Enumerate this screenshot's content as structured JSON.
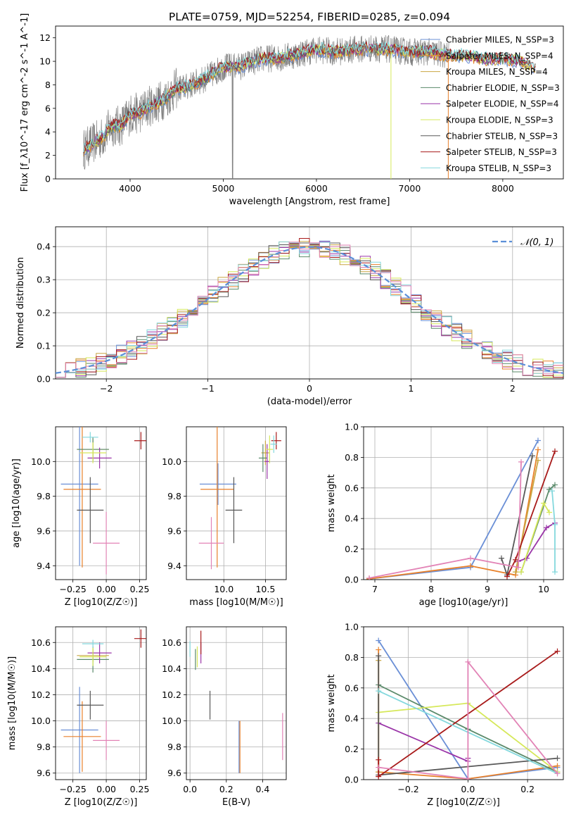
{
  "title": "PLATE=0759, MJD=52254, FIBERID=0285, z=0.094",
  "colors": {
    "chabrier_miles": "#6a8fd6",
    "salpeter_miles": "#e8812b",
    "kroupa_miles": "#c9a642",
    "chabrier_elodie": "#5a8a6a",
    "salpeter_elodie": "#9a35a8",
    "kroupa_elodie": "#d6e85a",
    "chabrier_stelib": "#585858",
    "salpeter_stelib": "#a81a1a",
    "kroupa_stelib": "#84d8dd",
    "pink": "#e283b6",
    "spectrum": "#808080",
    "normal": "#5b8fd8",
    "grid": "#b0b0b0"
  },
  "chart_data": [
    {
      "id": "spectrum",
      "type": "line",
      "xlabel": "wavelength [Angstrom, rest frame]",
      "ylabel": "Flux [f_λ10^-17 erg cm^-2 s^-1 A^-1]",
      "xlim": [
        3200,
        8650
      ],
      "ylim": [
        0,
        13
      ],
      "xticks": [
        4000,
        5000,
        6000,
        7000,
        8000
      ],
      "yticks": [
        0,
        2,
        4,
        6,
        8,
        10,
        12
      ],
      "grid": false,
      "legend_position": "right",
      "legend": [
        {
          "label": "Chabrier MILES, N_SSP=3",
          "color": "#6a8fd6"
        },
        {
          "label": "Salpeter MILES, N_SSP=4",
          "color": "#e8812b"
        },
        {
          "label": "Kroupa MILES, N_SSP=4",
          "color": "#c9a642"
        },
        {
          "label": "Chabrier ELODIE, N_SSP=3",
          "color": "#5a8a6a"
        },
        {
          "label": "Salpeter ELODIE, N_SSP=4",
          "color": "#9a35a8"
        },
        {
          "label": "Kroupa ELODIE, N_SSP=3",
          "color": "#d6e85a"
        },
        {
          "label": "Chabrier STELIB, N_SSP=3",
          "color": "#585858"
        },
        {
          "label": "Salpeter STELIB, N_SSP=3",
          "color": "#a81a1a"
        },
        {
          "label": "Kroupa STELIB, N_SSP=3",
          "color": "#84d8dd"
        }
      ],
      "model_curve": {
        "x": [
          3500,
          3600,
          3700,
          3800,
          3900,
          4000,
          4100,
          4200,
          4300,
          4400,
          4500,
          4600,
          4800,
          5000,
          5200,
          5400,
          5600,
          5800,
          6000,
          6200,
          6400,
          6600,
          6800,
          7000,
          7200,
          7400,
          7600,
          7800,
          8000,
          8200,
          8350
        ],
        "y": [
          2.5,
          3.0,
          3.5,
          4.5,
          4.5,
          5.5,
          5.6,
          6.2,
          6.5,
          7.0,
          7.7,
          7.8,
          8.5,
          9.5,
          9.6,
          10.2,
          10.3,
          10.6,
          11.0,
          10.8,
          11.0,
          11.1,
          11.0,
          10.8,
          10.8,
          10.5,
          10.5,
          10.2,
          10.2,
          10.0,
          9.5
        ]
      },
      "observed_noise": "spectrum scatter ~±2 around model; dips near 5100 and 6800 to 0"
    },
    {
      "id": "residuals",
      "type": "histogram",
      "xlabel": "(data-model)/error",
      "ylabel": "Normed distribution",
      "xlim": [
        -2.5,
        2.5
      ],
      "ylim": [
        0,
        0.46
      ],
      "xticks": [
        -2,
        -1,
        0,
        1,
        2
      ],
      "yticks": [
        0.0,
        0.1,
        0.2,
        0.3,
        0.4
      ],
      "grid": true,
      "legend_position": "top-right",
      "legend_label": "𝒩(0, 1)",
      "bin_width": 0.1
    },
    {
      "id": "age_vs_Z",
      "type": "errorbar",
      "xlabel": "Z [log10(Z/Z☉)]",
      "ylabel": "age [log10(age/yr)]",
      "xlim": [
        -0.38,
        0.3
      ],
      "ylim": [
        9.32,
        10.2
      ],
      "xticks": [
        -0.25,
        0.0,
        0.25
      ],
      "yticks": [
        9.4,
        9.6,
        9.8,
        10.0
      ],
      "grid": true,
      "points": [
        {
          "x": -0.2,
          "xerr": 0.14,
          "y": 9.87,
          "yerr": 0.47,
          "color": "#6a8fd6"
        },
        {
          "x": -0.18,
          "xerr": 0.14,
          "y": 9.84,
          "yerr": 0.45,
          "color": "#e8812b"
        },
        {
          "x": -0.1,
          "xerr": 0.12,
          "y": 10.07,
          "yerr": 0.06,
          "color": "#c9a642"
        },
        {
          "x": -0.1,
          "xerr": 0.12,
          "y": 10.07,
          "yerr": 0.07,
          "color": "#5a8a6a"
        },
        {
          "x": -0.05,
          "xerr": 0.09,
          "y": 10.02,
          "yerr": 0.06,
          "color": "#9a35a8"
        },
        {
          "x": -0.1,
          "xerr": 0.1,
          "y": 10.05,
          "yerr": 0.06,
          "color": "#d6e85a"
        },
        {
          "x": -0.12,
          "xerr": 0.1,
          "y": 9.72,
          "yerr": 0.19,
          "color": "#585858"
        },
        {
          "x": 0.26,
          "xerr": 0.05,
          "y": 10.12,
          "yerr": 0.05,
          "color": "#a81a1a"
        },
        {
          "x": -0.12,
          "xerr": 0.06,
          "y": 10.14,
          "yerr": 0.03,
          "color": "#84d8dd"
        },
        {
          "x": 0.0,
          "xerr": 0.1,
          "y": 9.53,
          "yerr": 0.18,
          "color": "#e283b6"
        }
      ]
    },
    {
      "id": "age_vs_mass",
      "type": "errorbar",
      "xlabel": "mass [log10(M/M☉)]",
      "ylabel": "",
      "xlim": [
        9.55,
        10.75
      ],
      "ylim": [
        9.32,
        10.2
      ],
      "xticks": [
        10.0,
        10.5
      ],
      "yticks": [
        9.4,
        9.6,
        9.8,
        10.0
      ],
      "grid": true,
      "points": [
        {
          "x": 9.93,
          "xerr": 0.22,
          "y": 9.87,
          "yerr": 0.12,
          "color": "#6a8fd6"
        },
        {
          "x": 9.92,
          "xerr": 0.2,
          "y": 9.84,
          "yerr": 0.45,
          "color": "#e8812b"
        },
        {
          "x": 10.5,
          "xerr": 0.05,
          "y": 10.05,
          "yerr": 0.07,
          "color": "#c9a642"
        },
        {
          "x": 10.47,
          "xerr": 0.05,
          "y": 10.02,
          "yerr": 0.08,
          "color": "#5a8a6a"
        },
        {
          "x": 10.52,
          "xerr": 0.03,
          "y": 10.0,
          "yerr": 0.1,
          "color": "#9a35a8"
        },
        {
          "x": 10.55,
          "xerr": 0.04,
          "y": 10.07,
          "yerr": 0.08,
          "color": "#d6e85a"
        },
        {
          "x": 10.12,
          "xerr": 0.1,
          "y": 9.72,
          "yerr": 0.19,
          "color": "#585858"
        },
        {
          "x": 10.63,
          "xerr": 0.06,
          "y": 10.12,
          "yerr": 0.05,
          "color": "#a81a1a"
        },
        {
          "x": 10.6,
          "xerr": 0.04,
          "y": 10.1,
          "yerr": 0.05,
          "color": "#84d8dd"
        },
        {
          "x": 9.85,
          "xerr": 0.15,
          "y": 9.53,
          "yerr": 0.15,
          "color": "#e283b6"
        }
      ]
    },
    {
      "id": "massweight_vs_age",
      "type": "line",
      "xlabel": "age [log10(age/yr)]",
      "ylabel": "mass weight",
      "xlim": [
        6.8,
        10.35
      ],
      "ylim": [
        0,
        1.0
      ],
      "xticks": [
        7,
        8,
        9,
        10
      ],
      "yticks": [
        0.0,
        0.2,
        0.4,
        0.6,
        0.8,
        1.0
      ],
      "grid": true,
      "series": [
        {
          "color": "#6a8fd6",
          "x": [
            6.9,
            8.7,
            9.9
          ],
          "y": [
            0.005,
            0.08,
            0.91
          ]
        },
        {
          "color": "#e8812b",
          "x": [
            6.9,
            8.7,
            9.5,
            9.9
          ],
          "y": [
            0.005,
            0.09,
            0.03,
            0.85
          ]
        },
        {
          "color": "#c9a642",
          "x": [
            9.5,
            9.9
          ],
          "y": [
            0.05,
            0.78
          ]
        },
        {
          "color": "#5a8a6a",
          "x": [
            9.6,
            10.1,
            10.2
          ],
          "y": [
            0.05,
            0.59,
            0.62
          ]
        },
        {
          "color": "#9a35a8",
          "x": [
            9.55,
            9.7,
            10.05,
            10.2
          ],
          "y": [
            0.12,
            0.14,
            0.34,
            0.37
          ]
        },
        {
          "color": "#d6e85a",
          "x": [
            9.6,
            10.0,
            10.1
          ],
          "y": [
            0.05,
            0.5,
            0.44
          ]
        },
        {
          "color": "#585858",
          "x": [
            9.25,
            9.35,
            9.8
          ],
          "y": [
            0.14,
            0.03,
            0.81
          ]
        },
        {
          "color": "#a81a1a",
          "x": [
            9.35,
            9.5,
            10.2
          ],
          "y": [
            0.02,
            0.13,
            0.84
          ]
        },
        {
          "color": "#84d8dd",
          "x": [
            10.15,
            10.2,
            10.2
          ],
          "y": [
            0.58,
            0.36,
            0.05
          ]
        },
        {
          "color": "#e283b6",
          "x": [
            6.9,
            8.7,
            9.55,
            9.6
          ],
          "y": [
            0.01,
            0.14,
            0.08,
            0.77
          ]
        }
      ]
    },
    {
      "id": "mass_vs_Z",
      "type": "errorbar",
      "xlabel": "Z [log10(Z/Z☉)]",
      "ylabel": "mass [log10(M/M☉)]",
      "xlim": [
        -0.38,
        0.3
      ],
      "ylim": [
        9.55,
        10.72
      ],
      "xticks": [
        -0.25,
        0.0,
        0.25
      ],
      "yticks": [
        9.6,
        9.8,
        10.0,
        10.2,
        10.4,
        10.6
      ],
      "grid": true,
      "points": [
        {
          "x": -0.2,
          "xerr": 0.14,
          "y": 9.93,
          "yerr": 0.33,
          "color": "#6a8fd6"
        },
        {
          "x": -0.18,
          "xerr": 0.14,
          "y": 9.88,
          "yerr": 0.27,
          "color": "#e8812b"
        },
        {
          "x": -0.1,
          "xerr": 0.12,
          "y": 10.5,
          "yerr": 0.05,
          "color": "#c9a642"
        },
        {
          "x": -0.1,
          "xerr": 0.12,
          "y": 10.47,
          "yerr": 0.1,
          "color": "#5a8a6a"
        },
        {
          "x": -0.05,
          "xerr": 0.09,
          "y": 10.52,
          "yerr": 0.08,
          "color": "#9a35a8"
        },
        {
          "x": -0.1,
          "xerr": 0.1,
          "y": 10.49,
          "yerr": 0.07,
          "color": "#d6e85a"
        },
        {
          "x": -0.12,
          "xerr": 0.1,
          "y": 10.12,
          "yerr": 0.11,
          "color": "#585858"
        },
        {
          "x": 0.26,
          "xerr": 0.05,
          "y": 10.63,
          "yerr": 0.07,
          "color": "#a81a1a"
        },
        {
          "x": -0.1,
          "xerr": 0.08,
          "y": 10.59,
          "yerr": 0.03,
          "color": "#84d8dd"
        },
        {
          "x": 0.0,
          "xerr": 0.1,
          "y": 9.85,
          "yerr": 0.15,
          "color": "#e283b6"
        }
      ]
    },
    {
      "id": "mass_vs_ebv",
      "type": "errorbar",
      "xlabel": "E(B-V)",
      "ylabel": "",
      "xlim": [
        -0.02,
        0.53
      ],
      "ylim": [
        9.55,
        10.72
      ],
      "xticks": [
        0.0,
        0.2,
        0.4
      ],
      "yticks": [
        9.6,
        9.8,
        10.0,
        10.2,
        10.4,
        10.6
      ],
      "grid": true,
      "points": [
        {
          "x": 0.27,
          "xerr": 0.0,
          "y": 9.8,
          "yerr": 0.2,
          "color": "#6a8fd6"
        },
        {
          "x": 0.275,
          "xerr": 0.0,
          "y": 9.8,
          "yerr": 0.2,
          "color": "#e8812b"
        },
        {
          "x": 0.03,
          "xerr": 0.0,
          "y": 10.47,
          "yerr": 0.08,
          "color": "#5a8a6a"
        },
        {
          "x": 0.06,
          "xerr": 0.0,
          "y": 10.52,
          "yerr": 0.08,
          "color": "#9a35a8"
        },
        {
          "x": 0.04,
          "xerr": 0.0,
          "y": 10.49,
          "yerr": 0.08,
          "color": "#d6e85a"
        },
        {
          "x": 0.11,
          "xerr": 0.0,
          "y": 10.12,
          "yerr": 0.11,
          "color": "#585858"
        },
        {
          "x": 0.06,
          "xerr": 0.0,
          "y": 10.6,
          "yerr": 0.09,
          "color": "#a81a1a"
        },
        {
          "x": 0.0,
          "xerr": 0.0,
          "y": 10.55,
          "yerr": 0.06,
          "color": "#84d8dd"
        },
        {
          "x": 0.51,
          "xerr": 0.0,
          "y": 9.88,
          "yerr": 0.18,
          "color": "#e283b6"
        }
      ]
    },
    {
      "id": "massweight_vs_Z",
      "type": "line",
      "xlabel": "Z [log10(Z/Z☉)]",
      "ylabel": "mass weight",
      "xlim": [
        -0.35,
        0.32
      ],
      "ylim": [
        0,
        1.0
      ],
      "xticks": [
        -0.2,
        0.0,
        0.2
      ],
      "yticks": [
        0.0,
        0.2,
        0.4,
        0.6,
        0.8,
        1.0
      ],
      "grid": true,
      "series": [
        {
          "color": "#6a8fd6",
          "x": [
            -0.3,
            0.0,
            0.3
          ],
          "y": [
            0.91,
            0.005,
            0.08
          ]
        },
        {
          "color": "#e8812b",
          "x": [
            -0.3,
            -0.3,
            0.0,
            0.3
          ],
          "y": [
            0.85,
            0.05,
            0.005,
            0.09
          ]
        },
        {
          "color": "#c9a642",
          "x": [
            -0.3,
            -0.3
          ],
          "y": [
            0.78,
            0.05
          ]
        },
        {
          "color": "#5a8a6a",
          "x": [
            -0.3,
            0.0,
            0.3
          ],
          "y": [
            0.62,
            0.33,
            0.05
          ]
        },
        {
          "color": "#9a35a8",
          "x": [
            -0.3,
            0.0,
            0.0
          ],
          "y": [
            0.37,
            0.12,
            0.14
          ]
        },
        {
          "color": "#d6e85a",
          "x": [
            -0.3,
            0.0,
            0.3
          ],
          "y": [
            0.44,
            0.5,
            0.05
          ]
        },
        {
          "color": "#585858",
          "x": [
            -0.3,
            -0.3,
            0.3
          ],
          "y": [
            0.81,
            0.03,
            0.14
          ]
        },
        {
          "color": "#a81a1a",
          "x": [
            -0.3,
            -0.3,
            0.3
          ],
          "y": [
            0.13,
            0.02,
            0.84
          ]
        },
        {
          "color": "#84d8dd",
          "x": [
            -0.3,
            0.3
          ],
          "y": [
            0.58,
            0.04
          ]
        },
        {
          "color": "#e283b6",
          "x": [
            -0.3,
            0.0,
            0.0,
            0.3
          ],
          "y": [
            0.08,
            0.005,
            0.77,
            0.04
          ]
        }
      ]
    }
  ]
}
